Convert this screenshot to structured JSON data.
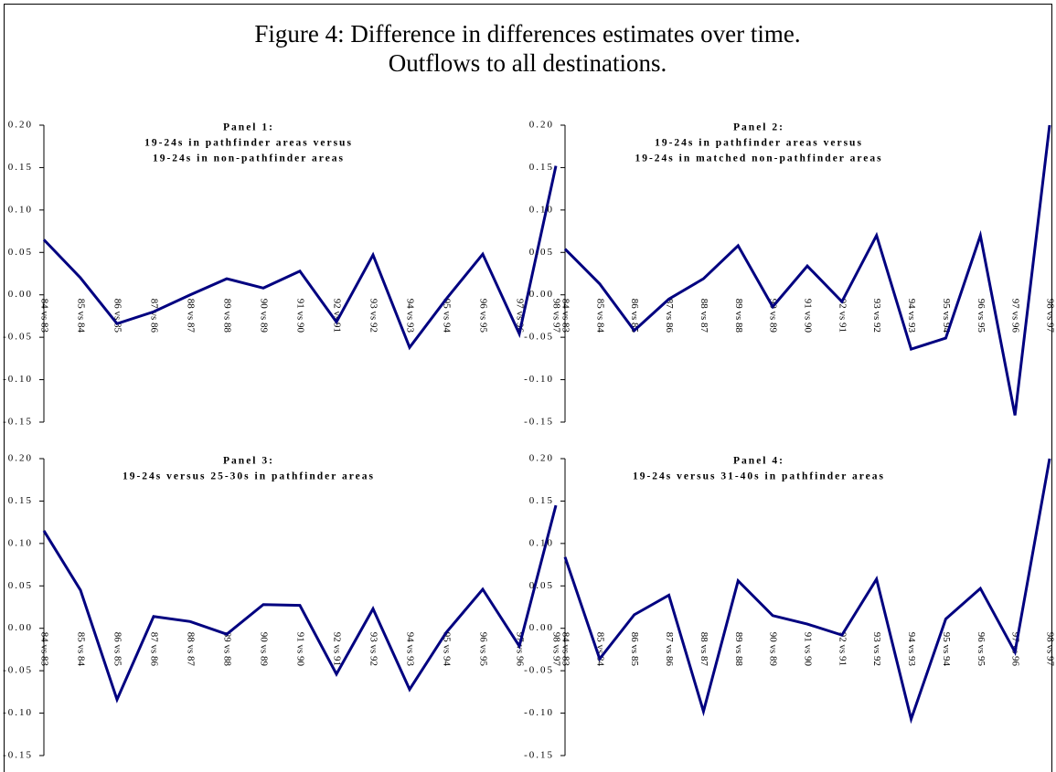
{
  "title": [
    "Figure 4: Difference in differences estimates over time.",
    "Outflows to all destinations."
  ],
  "chart_data": [
    {
      "type": "line",
      "title": [
        "Panel 1:",
        "19-24s in pathfinder areas versus",
        "19-24s in non-pathfinder areas"
      ],
      "categories": [
        "84 vs 83",
        "85 vs 84",
        "86 vs 85",
        "87 vs 86",
        "88 vs 87",
        "89 vs 88",
        "90 vs 89",
        "91 vs 90",
        "92 vs 91",
        "93 vs 92",
        "94 vs 93",
        "95 vs 94",
        "96 vs 95",
        "97 vs 96",
        "98 vs 97"
      ],
      "series": [
        {
          "color": "#000080",
          "values": [
            0.065,
            0.02,
            -0.034,
            -0.02,
            0.0,
            0.019,
            0.008,
            0.028,
            -0.032,
            0.047,
            -0.062,
            -0.005,
            0.048,
            -0.046,
            0.152
          ]
        }
      ],
      "ylim": [
        -0.15,
        0.2
      ],
      "yticks": [
        -0.15,
        {
          "value": -0.1,
          "label": "-0.10"
        },
        -0.05,
        {
          "value": 0,
          "label": "0.00"
        },
        0.05,
        {
          "value": 0.1,
          "label": "0.10"
        },
        0.15,
        {
          "value": 0.2,
          "label": "0.20"
        }
      ]
    },
    {
      "type": "line",
      "title": [
        "Panel 2:",
        "19-24s in pathfinder areas versus",
        "19-24s in matched non-pathfinder areas"
      ],
      "categories": [
        "84 vs 83",
        "85 vs 84",
        "86 vs 85",
        "87 vs 86",
        "88 vs 87",
        "89 vs 88",
        "90 vs 89",
        "91 vs 90",
        "92 vs 91",
        "93 vs 92",
        "94 vs 93",
        "95 vs 94",
        "96 vs 95",
        "97 vs 96",
        "98 vs 97"
      ],
      "series": [
        {
          "color": "#000080",
          "values": [
            0.054,
            0.013,
            -0.042,
            -0.005,
            0.019,
            0.058,
            -0.014,
            0.034,
            -0.008,
            0.07,
            -0.064,
            -0.051,
            0.07,
            -0.142,
            0.2
          ]
        }
      ],
      "ylim": [
        -0.15,
        0.2
      ],
      "yticks": [
        -0.15,
        {
          "value": -0.1,
          "label": "-0.10"
        },
        -0.05,
        {
          "value": 0,
          "label": "0.00"
        },
        0.05,
        {
          "value": 0.1,
          "label": "0.10"
        },
        0.15,
        {
          "value": 0.2,
          "label": "0.20"
        }
      ]
    },
    {
      "type": "line",
      "title": [
        "Panel 3:",
        "19-24s versus 25-30s in pathfinder areas"
      ],
      "categories": [
        "84 vs 83",
        "85 vs 84",
        "86 vs 85",
        "87 vs 86",
        "88 vs 87",
        "89 vs 88",
        "90 vs 89",
        "91 vs 90",
        "92 vs 91",
        "93 vs 92",
        "94 vs 93",
        "95 vs 94",
        "96 vs 95",
        "97 vs 96",
        "98 vs 97"
      ],
      "series": [
        {
          "color": "#000080",
          "values": [
            0.115,
            0.045,
            -0.084,
            0.014,
            0.008,
            -0.007,
            0.028,
            0.027,
            -0.054,
            0.023,
            -0.072,
            -0.005,
            0.046,
            -0.021,
            0.145
          ]
        }
      ],
      "ylim": [
        -0.15,
        0.2
      ],
      "yticks": [
        -0.15,
        {
          "value": -0.1,
          "label": "-0.10"
        },
        -0.05,
        {
          "value": 0,
          "label": "0.00"
        },
        0.05,
        {
          "value": 0.1,
          "label": "0.10"
        },
        0.15,
        {
          "value": 0.2,
          "label": "0.20"
        }
      ]
    },
    {
      "type": "line",
      "title": [
        "Panel 4:",
        "19-24s versus 31-40s in pathfinder areas"
      ],
      "categories": [
        "84 vs 83",
        "85 vs 84",
        "86 vs 85",
        "87 vs 86",
        "88 vs 87",
        "89 vs 88",
        "90 vs 89",
        "91 vs 90",
        "92 vs 91",
        "93 vs 92",
        "94 vs 93",
        "95 vs 94",
        "96 vs 95",
        "97 vs 96",
        "98 vs 97"
      ],
      "series": [
        {
          "color": "#000080",
          "values": [
            0.084,
            -0.036,
            0.016,
            0.039,
            -0.098,
            0.056,
            0.015,
            0.005,
            -0.008,
            0.058,
            -0.107,
            0.011,
            0.047,
            -0.028,
            0.2
          ]
        }
      ],
      "ylim": [
        -0.15,
        0.2
      ],
      "yticks": [
        -0.15,
        {
          "value": -0.1,
          "label": "-0.10"
        },
        -0.05,
        {
          "value": 0,
          "label": "0.00"
        },
        0.05,
        {
          "value": 0.1,
          "label": "0.10"
        },
        0.15,
        {
          "value": 0.2,
          "label": "0.20"
        }
      ]
    }
  ]
}
